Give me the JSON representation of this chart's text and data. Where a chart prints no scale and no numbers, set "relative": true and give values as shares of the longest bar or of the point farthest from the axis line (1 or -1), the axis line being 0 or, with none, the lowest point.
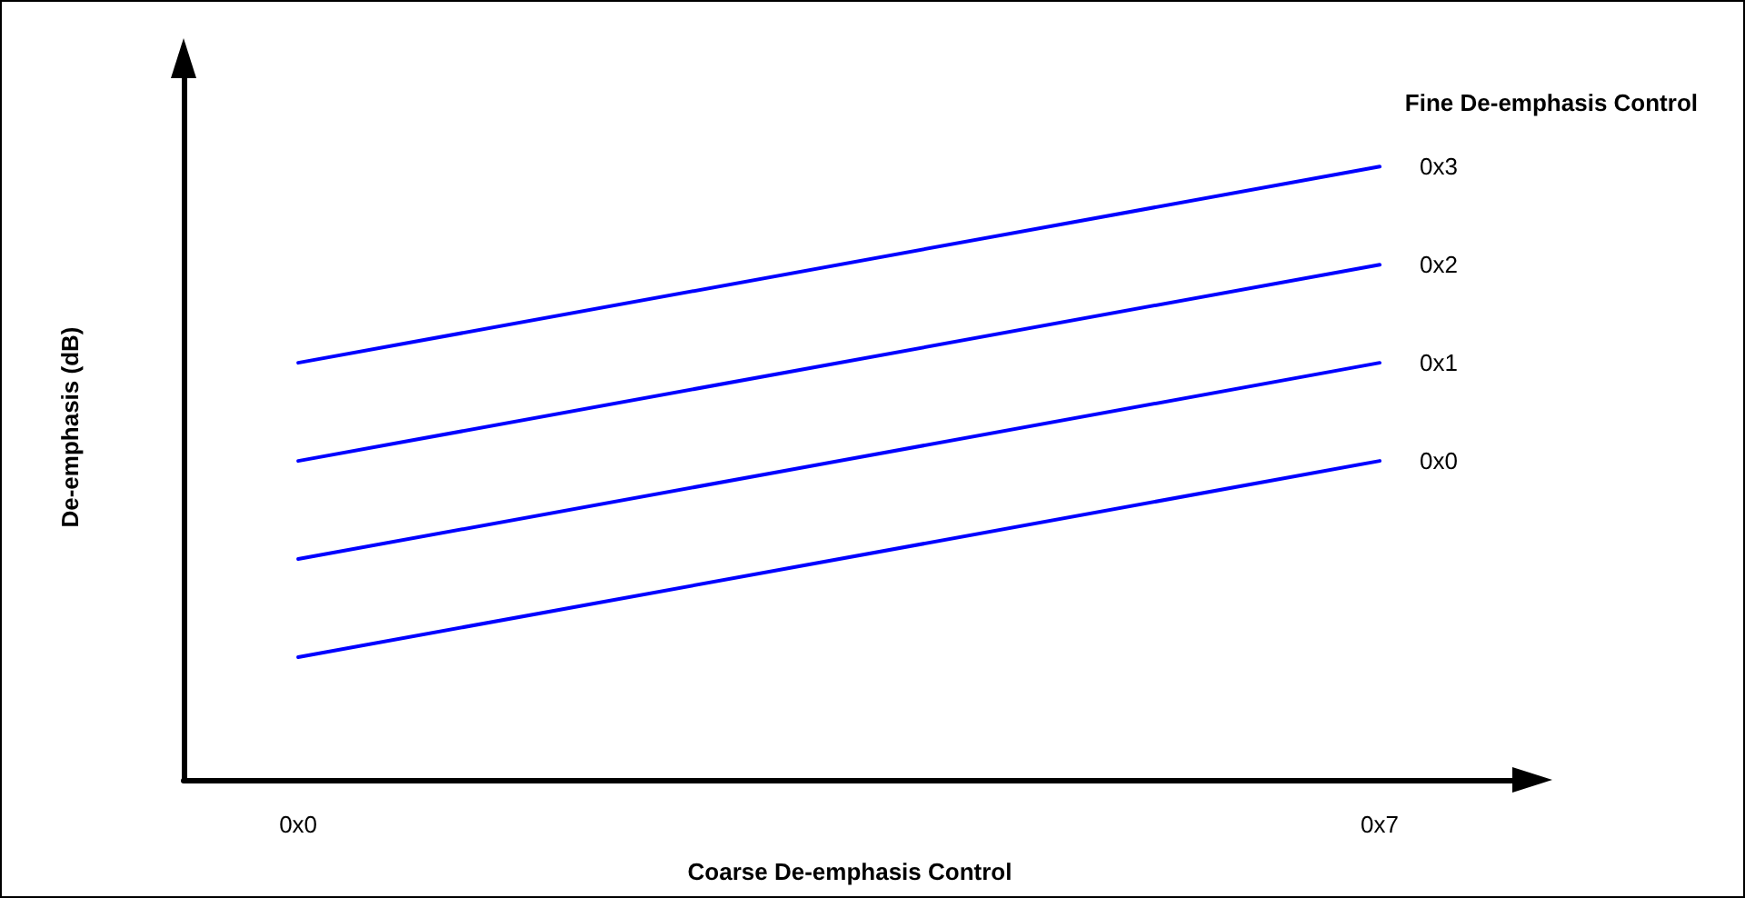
{
  "chart_data": {
    "type": "line",
    "relative": true,
    "legend_title": "Fine De-emphasis Control",
    "xlabel": "Coarse De-emphasis Control",
    "ylabel": "De-emphasis (dB)",
    "categories": [
      "0x0",
      "0x7"
    ],
    "series": [
      {
        "name": "0x3",
        "color": "#0000ff",
        "values": [
          0.68,
          1.0
        ]
      },
      {
        "name": "0x2",
        "color": "#0000ff",
        "values": [
          0.52,
          0.84
        ]
      },
      {
        "name": "0x1",
        "color": "#0000ff",
        "values": [
          0.36,
          0.68
        ]
      },
      {
        "name": "0x0",
        "color": "#0000ff",
        "values": [
          0.2,
          0.52
        ]
      }
    ]
  }
}
